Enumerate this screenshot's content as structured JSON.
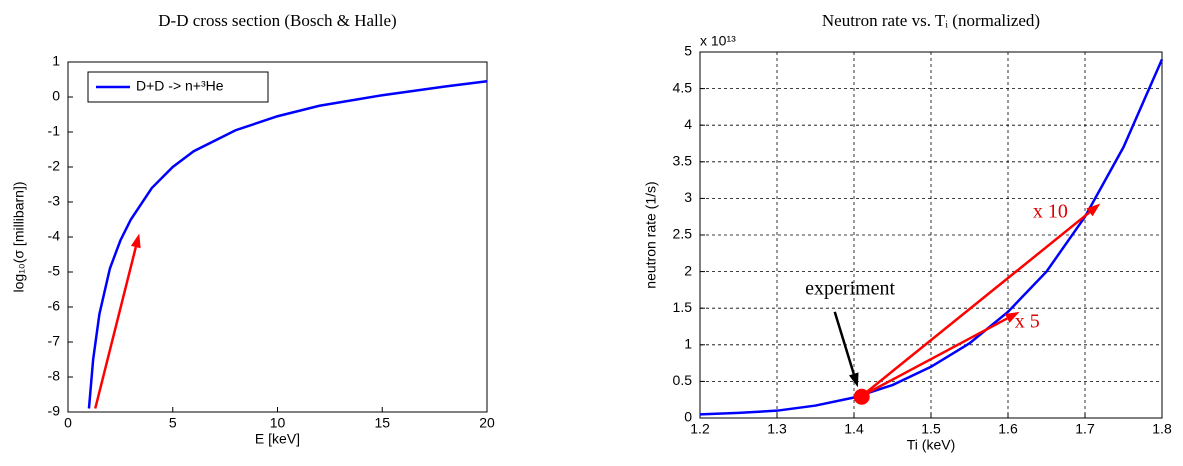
{
  "chart_data": [
    {
      "type": "line",
      "title": "D-D cross section (Bosch & Halle)",
      "x_label": "E [keV]",
      "y_label": "log₁₀(σ [millibarn])",
      "xlim": [
        0,
        20
      ],
      "xticks": [
        0,
        5,
        10,
        15,
        20
      ],
      "ylim": [
        -9,
        1
      ],
      "yticks": [
        -9,
        -8,
        -7,
        -6,
        -5,
        -4,
        -3,
        -2,
        -1,
        0,
        1
      ],
      "grid": false,
      "legend": "upper left",
      "x": [
        1,
        1.2,
        1.5,
        2,
        2.5,
        3,
        4,
        5,
        6,
        8,
        10,
        12,
        15,
        18,
        20
      ],
      "series": [
        {
          "name": "D+D -> n+³He",
          "color": "#0000ff",
          "values": [
            -8.9,
            -7.5,
            -6.2,
            -4.9,
            -4.1,
            -3.5,
            -2.6,
            -2.0,
            -1.55,
            -0.95,
            -0.55,
            -0.25,
            0.05,
            0.3,
            0.45
          ]
        }
      ],
      "arrows": [
        {
          "from": [
            1.3,
            -8.9
          ],
          "to": [
            3.4,
            -3.9
          ],
          "color": "#ff0000"
        }
      ]
    },
    {
      "type": "line",
      "title": "Neutron rate vs. Tᵢ (normalized)",
      "x_label": "Ti (keV)",
      "y_label": "neutron rate (1/s)",
      "y_multiplier": "x 10¹³",
      "xlim": [
        1.2,
        1.8
      ],
      "xticks": [
        1.2,
        1.3,
        1.4,
        1.5,
        1.6,
        1.7,
        1.8
      ],
      "ylim": [
        0,
        5
      ],
      "yticks": [
        0,
        0.5,
        1,
        1.5,
        2,
        2.5,
        3,
        3.5,
        4,
        4.5,
        5
      ],
      "grid": true,
      "x": [
        1.2,
        1.25,
        1.3,
        1.35,
        1.4,
        1.45,
        1.5,
        1.55,
        1.6,
        1.65,
        1.7,
        1.75,
        1.8
      ],
      "series": [
        {
          "color": "#0000ff",
          "values": [
            0.05,
            0.07,
            0.1,
            0.17,
            0.28,
            0.45,
            0.7,
            1.02,
            1.45,
            2.0,
            2.75,
            3.7,
            4.9
          ]
        }
      ],
      "markers": [
        {
          "x": 1.41,
          "y": 0.29,
          "color": "#ff0000"
        }
      ],
      "arrows": [
        {
          "from": [
            1.375,
            1.45
          ],
          "to": [
            1.405,
            0.42
          ],
          "color": "#000000"
        },
        {
          "from": [
            1.41,
            0.3
          ],
          "to": [
            1.615,
            1.45
          ],
          "color": "#ff0000"
        },
        {
          "from": [
            1.41,
            0.3
          ],
          "to": [
            1.72,
            2.93
          ],
          "color": "#ff0000"
        }
      ],
      "annotations": [
        {
          "text": "experiment",
          "x": 1.395,
          "y": 1.75,
          "color": "#000000"
        },
        {
          "text": "x 5",
          "x": 1.625,
          "y": 1.3,
          "color": "#dd0000"
        },
        {
          "text": "x 10",
          "x": 1.655,
          "y": 2.8,
          "color": "#dd0000"
        }
      ]
    }
  ]
}
